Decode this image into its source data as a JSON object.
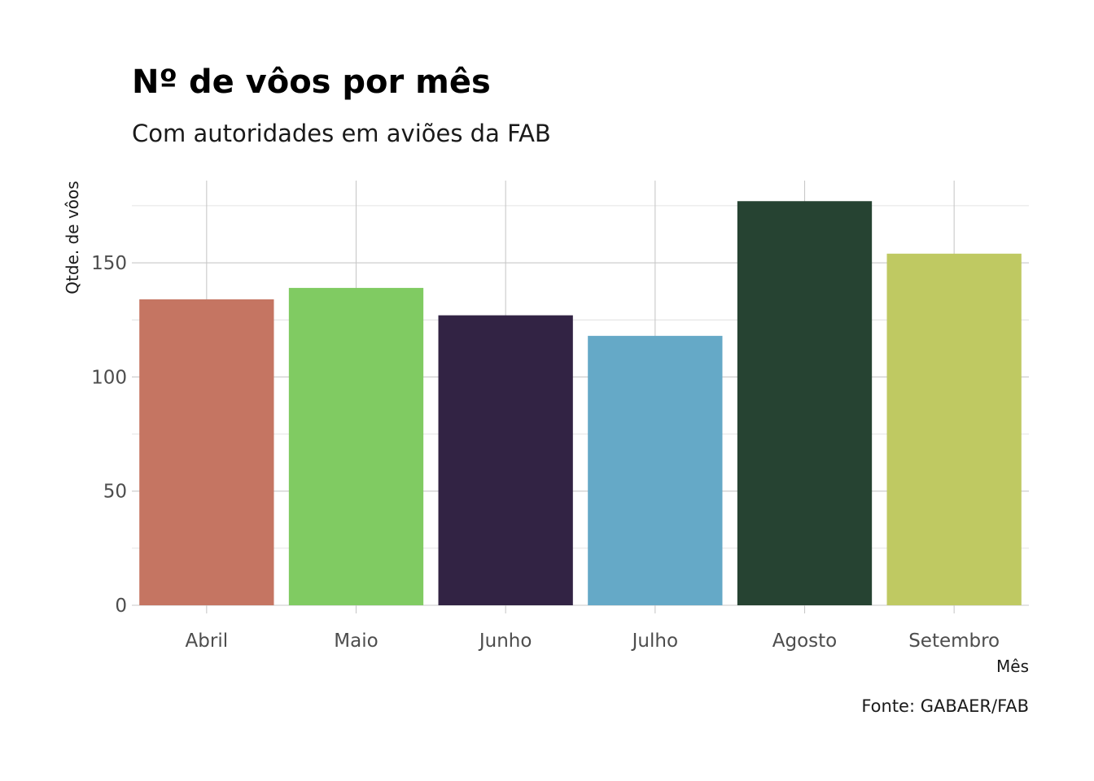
{
  "chart_data": {
    "type": "bar",
    "title": "Nº de vôos por mês",
    "subtitle": "Com autoridades em aviões da FAB",
    "xlabel": "Mês",
    "ylabel": "Qtde. de vôos",
    "caption": "Fonte: GABAER/FAB",
    "categories": [
      "Abril",
      "Maio",
      "Junho",
      "Julho",
      "Agosto",
      "Setembro"
    ],
    "values": [
      134,
      139,
      127,
      118,
      177,
      154
    ],
    "colors": [
      "#c57562",
      "#80cb62",
      "#322344",
      "#65a9c7",
      "#264332",
      "#bfc962"
    ],
    "ylim": [
      0,
      186
    ],
    "yticks": [
      0,
      50,
      100,
      150
    ],
    "grid": true,
    "legend": "none"
  }
}
